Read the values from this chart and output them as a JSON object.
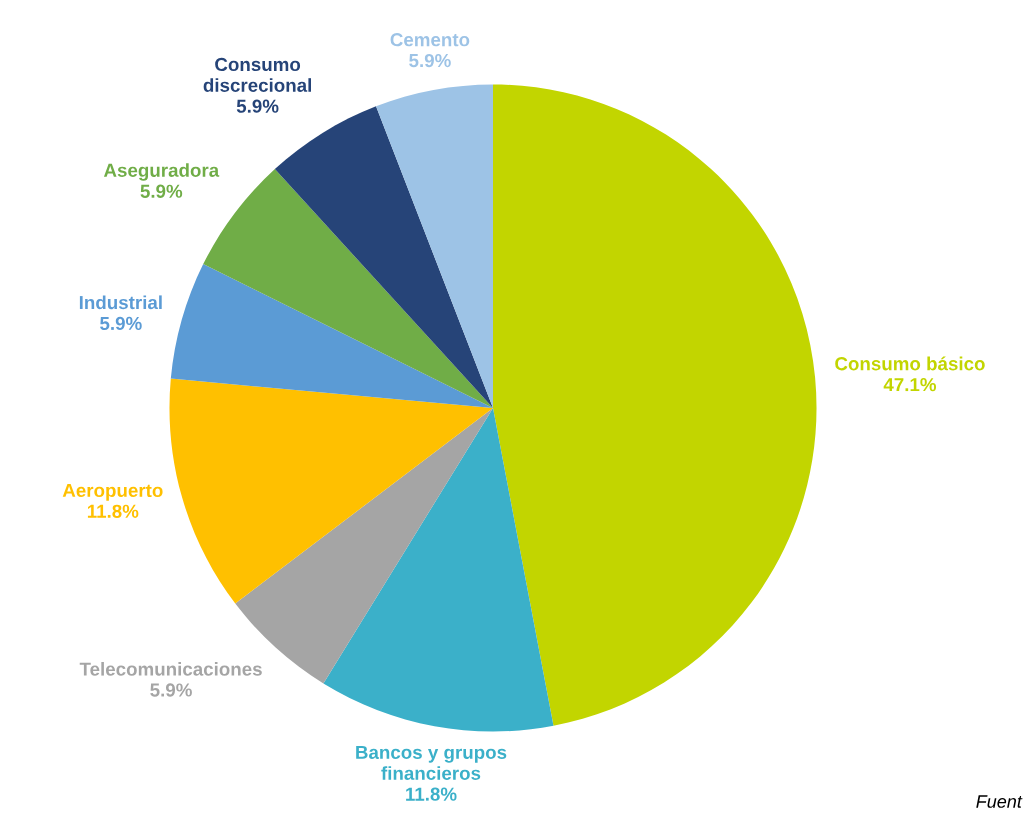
{
  "chart_data": {
    "type": "pie",
    "categories": [
      "Consumo básico",
      "Bancos y grupos financieros",
      "Telecomunicaciones",
      "Aeropuerto",
      "Industrial",
      "Aseguradora",
      "Consumo discrecional",
      "Cemento"
    ],
    "values": [
      47.1,
      11.8,
      5.9,
      11.8,
      5.9,
      5.9,
      5.9,
      5.9
    ],
    "value_labels": [
      "47.1%",
      "11.8%",
      "5.9%",
      "11.8%",
      "5.9%",
      "5.9%",
      "5.9%",
      "5.9%"
    ],
    "colors": [
      "#c2d500",
      "#3bb0c9",
      "#a5a5a5",
      "#ffc000",
      "#5b9bd5",
      "#70ad47",
      "#264478",
      "#9dc3e6"
    ],
    "annotations": [
      "Fuent"
    ],
    "legend": false
  }
}
